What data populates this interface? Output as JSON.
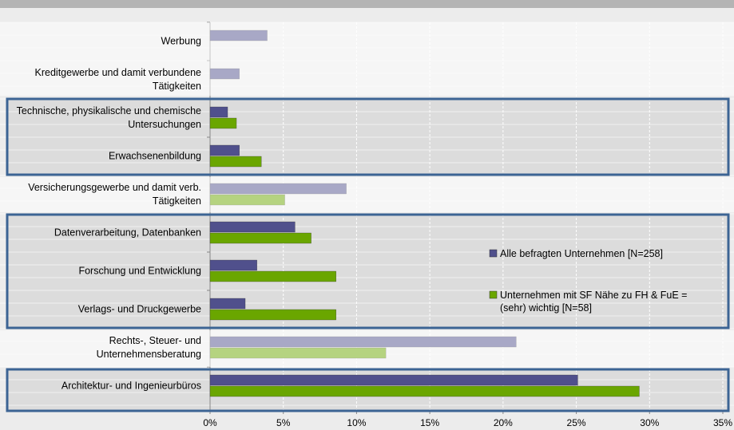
{
  "chart_data": {
    "type": "hbar",
    "categories": [
      "Werbung",
      "Kreditgewerbe und damit verbundene Tätigkeiten",
      "Technische, physikalische und chemische Untersuchungen",
      "Erwachsenenbildung",
      "Versicherungsgewerbe und damit verb. Tätigkeiten",
      "Datenverarbeitung, Datenbanken",
      "Forschung und Entwicklung",
      "Verlags- und Druckgewerbe",
      "Rechts-, Steuer- und Unternehmensberatung",
      "Architektur- und Ingenieurbüros"
    ],
    "series": [
      {
        "name": "Alle befragten Unternehmen [N=258]",
        "color": "#50508c",
        "values": [
          3.9,
          2.0,
          1.2,
          2.0,
          9.3,
          5.8,
          3.2,
          2.4,
          20.9,
          25.1
        ]
      },
      {
        "name": "Unternehmen mit SF Nähe zu FH & FuE = (sehr) wichtig [N=58]",
        "color": "#6aa600",
        "values": [
          0,
          0,
          1.8,
          3.5,
          5.1,
          6.9,
          8.6,
          8.6,
          12.0,
          29.3
        ]
      }
    ],
    "xlim": [
      0,
      35
    ],
    "xticks": [
      {
        "value": 0,
        "label": "0%"
      },
      {
        "value": 5,
        "label": "5%"
      },
      {
        "value": 10,
        "label": "10%"
      },
      {
        "value": 15,
        "label": "15%"
      },
      {
        "value": 20,
        "label": "20%"
      },
      {
        "value": 25,
        "label": "25%"
      },
      {
        "value": 30,
        "label": "30%"
      },
      {
        "value": 35,
        "label": "35%"
      }
    ],
    "grid": true
  }
}
